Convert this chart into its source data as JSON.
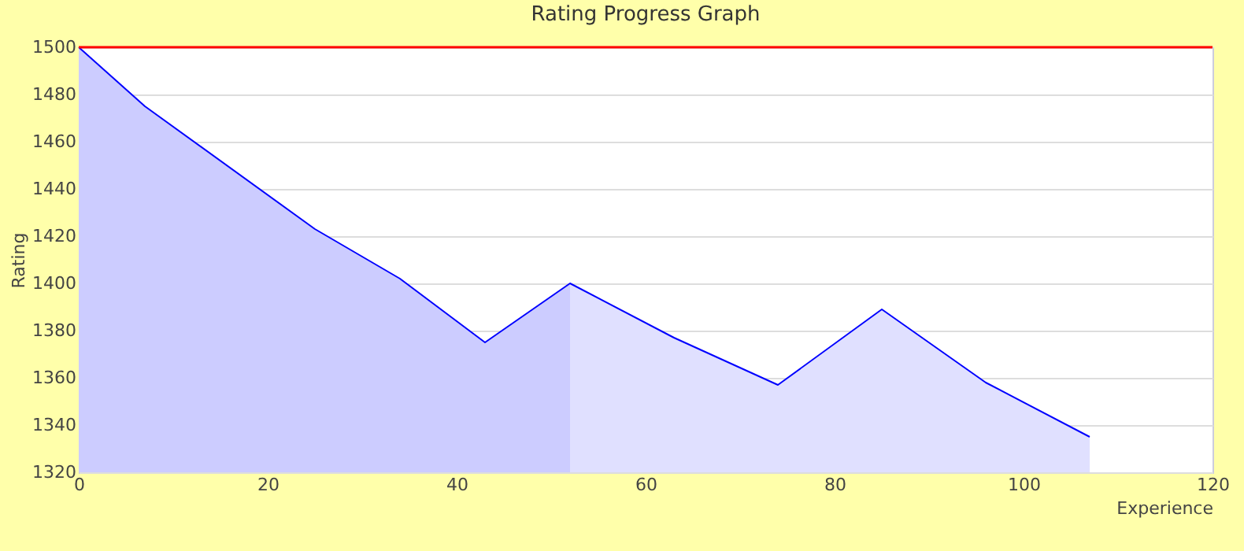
{
  "chart_data": {
    "type": "area",
    "title": "Rating Progress Graph",
    "xlabel": "Experience",
    "ylabel": "Rating",
    "series": [
      {
        "color": "#ccccff",
        "x": [
          0,
          7,
          25,
          34,
          43,
          52
        ],
        "values": [
          1500,
          1475,
          1423,
          1402,
          1375,
          1400
        ]
      },
      {
        "color": "#e0e0ff",
        "x": [
          52,
          63,
          74,
          85,
          96,
          107
        ],
        "values": [
          1400,
          1377,
          1357,
          1389,
          1358,
          1335
        ]
      },
      {
        "type": "line",
        "color": "#0000ff",
        "x": [
          0,
          7,
          25,
          34,
          43,
          52,
          63,
          74,
          85,
          96,
          107
        ],
        "values": [
          1500,
          1475,
          1423,
          1402,
          1375,
          1400,
          1377,
          1357,
          1389,
          1358,
          1335
        ]
      }
    ],
    "xlim": [
      0,
      120
    ],
    "xticks": [
      0,
      20,
      40,
      60,
      80,
      100,
      120
    ],
    "ylim": [
      1320,
      1500
    ],
    "yticks": [
      1320,
      1340,
      1360,
      1380,
      1400,
      1420,
      1440,
      1460,
      1480,
      1500
    ],
    "ref_lines": [
      {
        "axis": "y",
        "value": 1500,
        "color": "#ff0000"
      }
    ],
    "grid": "y",
    "legend": false
  }
}
